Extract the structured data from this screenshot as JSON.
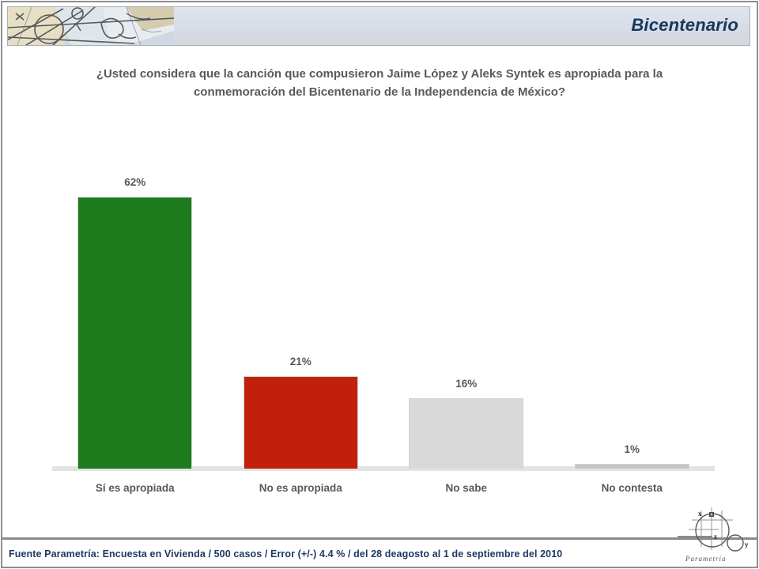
{
  "header": {
    "title": "Bicentenario",
    "accent_color": "#17375E"
  },
  "question": {
    "text": "¿Usted considera que la canción que compusieron Jaime López y Aleks Syntek es apropiada para la conmemoración del Bicentenario de la Independencia de México?"
  },
  "chart_data": {
    "type": "bar",
    "categories": [
      "Sí es apropiada",
      "No es apropiada",
      "No sabe",
      "No contesta"
    ],
    "values": [
      62,
      21,
      16,
      1
    ],
    "labels": [
      "62%",
      "21%",
      "16%",
      "1%"
    ],
    "colors": [
      "#1e7b1e",
      "#c2200a",
      "#d9d9d9",
      "#c6c6c6"
    ],
    "title": "¿Usted considera que la canción que compusieron Jaime López y Aleks Syntek es apropiada para la conmemoración del Bicentenario de la Independencia de México?",
    "xlabel": "",
    "ylabel": "",
    "ylim": [
      0,
      68
    ],
    "grid": false,
    "legend": false,
    "value_label_color": "#595959",
    "axis_label_color": "#595959",
    "baseline_color": "#e3e3e3"
  },
  "footer": {
    "source": "Fuente Parametría: Encuesta en Vivienda /  500 casos / Error (+/-) 4.4 % / del 28 deagosto  al 1 de septiembre del 2010",
    "text_color": "#1f3864",
    "logo_text": "P a r a m e t r í a",
    "logo_axis_labels": {
      "x": "x",
      "z": "z",
      "y": "y"
    }
  }
}
